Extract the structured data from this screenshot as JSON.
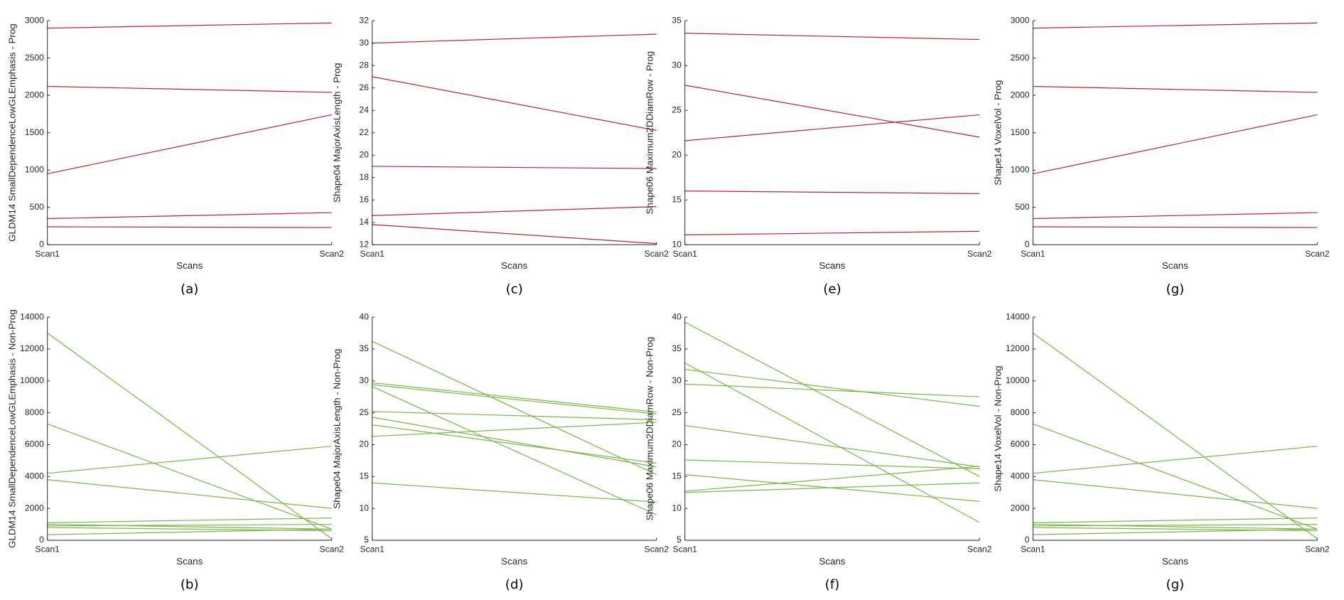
{
  "chart_data": [
    {
      "type": "line",
      "caption": "(a)",
      "xlabel": "Scans",
      "ylabel": "GLDM14 SmallDependenceLowGLEmphasis - Prog",
      "categories": [
        "Scan1",
        "Scan2"
      ],
      "ylim": [
        0,
        3000
      ],
      "yticks": [
        0,
        500,
        1000,
        1500,
        2000,
        2500,
        3000
      ],
      "series": [
        {
          "color": "#b8233f",
          "values": [
            2900,
            2970
          ]
        },
        {
          "color": "#b8233f",
          "values": [
            2120,
            2040
          ]
        },
        {
          "color": "#b8233f",
          "values": [
            950,
            1740
          ]
        },
        {
          "color": "#b8233f",
          "values": [
            350,
            430
          ]
        },
        {
          "color": "#b8233f",
          "values": [
            240,
            230
          ]
        }
      ]
    },
    {
      "type": "line",
      "caption": "(c)",
      "xlabel": "Scans",
      "ylabel": "Shape04 MajorAxisLength - Prog",
      "categories": [
        "Scan1",
        "Scan2"
      ],
      "ylim": [
        12,
        32
      ],
      "yticks": [
        12,
        14,
        16,
        18,
        20,
        22,
        24,
        26,
        28,
        30,
        32
      ],
      "series": [
        {
          "color": "#b8233f",
          "values": [
            30,
            30.8
          ]
        },
        {
          "color": "#b8233f",
          "values": [
            27,
            22.2
          ]
        },
        {
          "color": "#b8233f",
          "values": [
            19,
            18.8
          ]
        },
        {
          "color": "#b8233f",
          "values": [
            14.6,
            15.4
          ]
        },
        {
          "color": "#b8233f",
          "values": [
            13.8,
            12.1
          ]
        }
      ]
    },
    {
      "type": "line",
      "caption": "(e)",
      "xlabel": "Scans",
      "ylabel": "Shape06 Maximum2DDiamRow - Prog",
      "categories": [
        "Scan1",
        "Scan2"
      ],
      "ylim": [
        10,
        35
      ],
      "yticks": [
        10,
        15,
        20,
        25,
        30,
        35
      ],
      "series": [
        {
          "color": "#b8233f",
          "values": [
            33.6,
            32.9
          ]
        },
        {
          "color": "#b8233f",
          "values": [
            27.8,
            22
          ]
        },
        {
          "color": "#b8233f",
          "values": [
            21.6,
            24.5
          ]
        },
        {
          "color": "#b8233f",
          "values": [
            16,
            15.7
          ]
        },
        {
          "color": "#b8233f",
          "values": [
            11.1,
            11.5
          ]
        }
      ]
    },
    {
      "type": "line",
      "caption": "(g)",
      "xlabel": "Scans",
      "ylabel": "Shape14 VoxelVol - Prog",
      "categories": [
        "Scan1",
        "Scan2"
      ],
      "ylim": [
        0,
        3000
      ],
      "yticks": [
        0,
        500,
        1000,
        1500,
        2000,
        2500,
        3000
      ],
      "series": [
        {
          "color": "#b8233f",
          "values": [
            2900,
            2970
          ]
        },
        {
          "color": "#b8233f",
          "values": [
            2120,
            2040
          ]
        },
        {
          "color": "#b8233f",
          "values": [
            950,
            1740
          ]
        },
        {
          "color": "#b8233f",
          "values": [
            350,
            430
          ]
        },
        {
          "color": "#b8233f",
          "values": [
            240,
            230
          ]
        }
      ]
    },
    {
      "type": "line",
      "caption": "(b)",
      "xlabel": "Scans",
      "ylabel": "GLDM14 SmallDependenceLowGLEmphasis - Non-Prog",
      "categories": [
        "Scan1",
        "Scan2"
      ],
      "ylim": [
        0,
        14000
      ],
      "yticks": [
        0,
        2000,
        4000,
        6000,
        8000,
        10000,
        12000,
        14000
      ],
      "series": [
        {
          "color": "#7ab648",
          "values": [
            13000,
            100
          ]
        },
        {
          "color": "#7ab648",
          "values": [
            7300,
            700
          ]
        },
        {
          "color": "#7ab648",
          "values": [
            4200,
            5900
          ]
        },
        {
          "color": "#7ab648",
          "values": [
            3800,
            2000
          ]
        },
        {
          "color": "#7ab648",
          "values": [
            1100,
            1400
          ]
        },
        {
          "color": "#7ab648",
          "values": [
            1000,
            700
          ]
        },
        {
          "color": "#7ab648",
          "values": [
            900,
            1000
          ]
        },
        {
          "color": "#7ab648",
          "values": [
            800,
            600
          ]
        },
        {
          "color": "#7ab648",
          "values": [
            350,
            700
          ]
        }
      ]
    },
    {
      "type": "line",
      "caption": "(d)",
      "xlabel": "Scans",
      "ylabel": "Shape04 MajorAxisLength - Non-Prog",
      "categories": [
        "Scan1",
        "Scan2"
      ],
      "ylim": [
        5,
        40
      ],
      "yticks": [
        5,
        10,
        15,
        20,
        25,
        30,
        35,
        40
      ],
      "series": [
        {
          "color": "#7ab648",
          "values": [
            36.2,
            15.3
          ]
        },
        {
          "color": "#7ab648",
          "values": [
            29.7,
            25.1
          ]
        },
        {
          "color": "#7ab648",
          "values": [
            29.4,
            24.8
          ]
        },
        {
          "color": "#7ab648",
          "values": [
            29.1,
            9
          ]
        },
        {
          "color": "#7ab648",
          "values": [
            25.2,
            23.9
          ]
        },
        {
          "color": "#7ab648",
          "values": [
            24.3,
            16.5
          ]
        },
        {
          "color": "#7ab648",
          "values": [
            23.1,
            17.1
          ]
        },
        {
          "color": "#7ab648",
          "values": [
            21.3,
            23.5
          ]
        },
        {
          "color": "#7ab648",
          "values": [
            14,
            11
          ]
        }
      ]
    },
    {
      "type": "line",
      "caption": "(f)",
      "xlabel": "Scans",
      "ylabel": "Shape06 Maximum2DDiamRow - Non-Prog",
      "categories": [
        "Scan1",
        "Scan2"
      ],
      "ylim": [
        5,
        40
      ],
      "yticks": [
        5,
        10,
        15,
        20,
        25,
        30,
        35,
        40
      ],
      "series": [
        {
          "color": "#7ab648",
          "values": [
            39.2,
            15
          ]
        },
        {
          "color": "#7ab648",
          "values": [
            32.8,
            7.8
          ]
        },
        {
          "color": "#7ab648",
          "values": [
            31.8,
            26
          ]
        },
        {
          "color": "#7ab648",
          "values": [
            29.5,
            27.5
          ]
        },
        {
          "color": "#7ab648",
          "values": [
            23,
            16.5
          ]
        },
        {
          "color": "#7ab648",
          "values": [
            17.6,
            16.2
          ]
        },
        {
          "color": "#7ab648",
          "values": [
            15.3,
            11.1
          ]
        },
        {
          "color": "#7ab648",
          "values": [
            12.7,
            16.6
          ]
        },
        {
          "color": "#7ab648",
          "values": [
            12.5,
            14
          ]
        }
      ]
    },
    {
      "type": "line",
      "caption": "(g)",
      "xlabel": "Scans",
      "ylabel": "Shape14 VoxelVol - Non-Prog",
      "categories": [
        "Scan1",
        "Scan2"
      ],
      "ylim": [
        0,
        14000
      ],
      "yticks": [
        0,
        2000,
        4000,
        6000,
        8000,
        10000,
        12000,
        14000
      ],
      "series": [
        {
          "color": "#7ab648",
          "values": [
            13000,
            100
          ]
        },
        {
          "color": "#7ab648",
          "values": [
            7300,
            700
          ]
        },
        {
          "color": "#7ab648",
          "values": [
            4200,
            5900
          ]
        },
        {
          "color": "#7ab648",
          "values": [
            3800,
            2000
          ]
        },
        {
          "color": "#7ab648",
          "values": [
            1100,
            1400
          ]
        },
        {
          "color": "#7ab648",
          "values": [
            1000,
            700
          ]
        },
        {
          "color": "#7ab648",
          "values": [
            900,
            1000
          ]
        },
        {
          "color": "#7ab648",
          "values": [
            800,
            600
          ]
        },
        {
          "color": "#7ab648",
          "values": [
            350,
            700
          ]
        }
      ]
    }
  ]
}
